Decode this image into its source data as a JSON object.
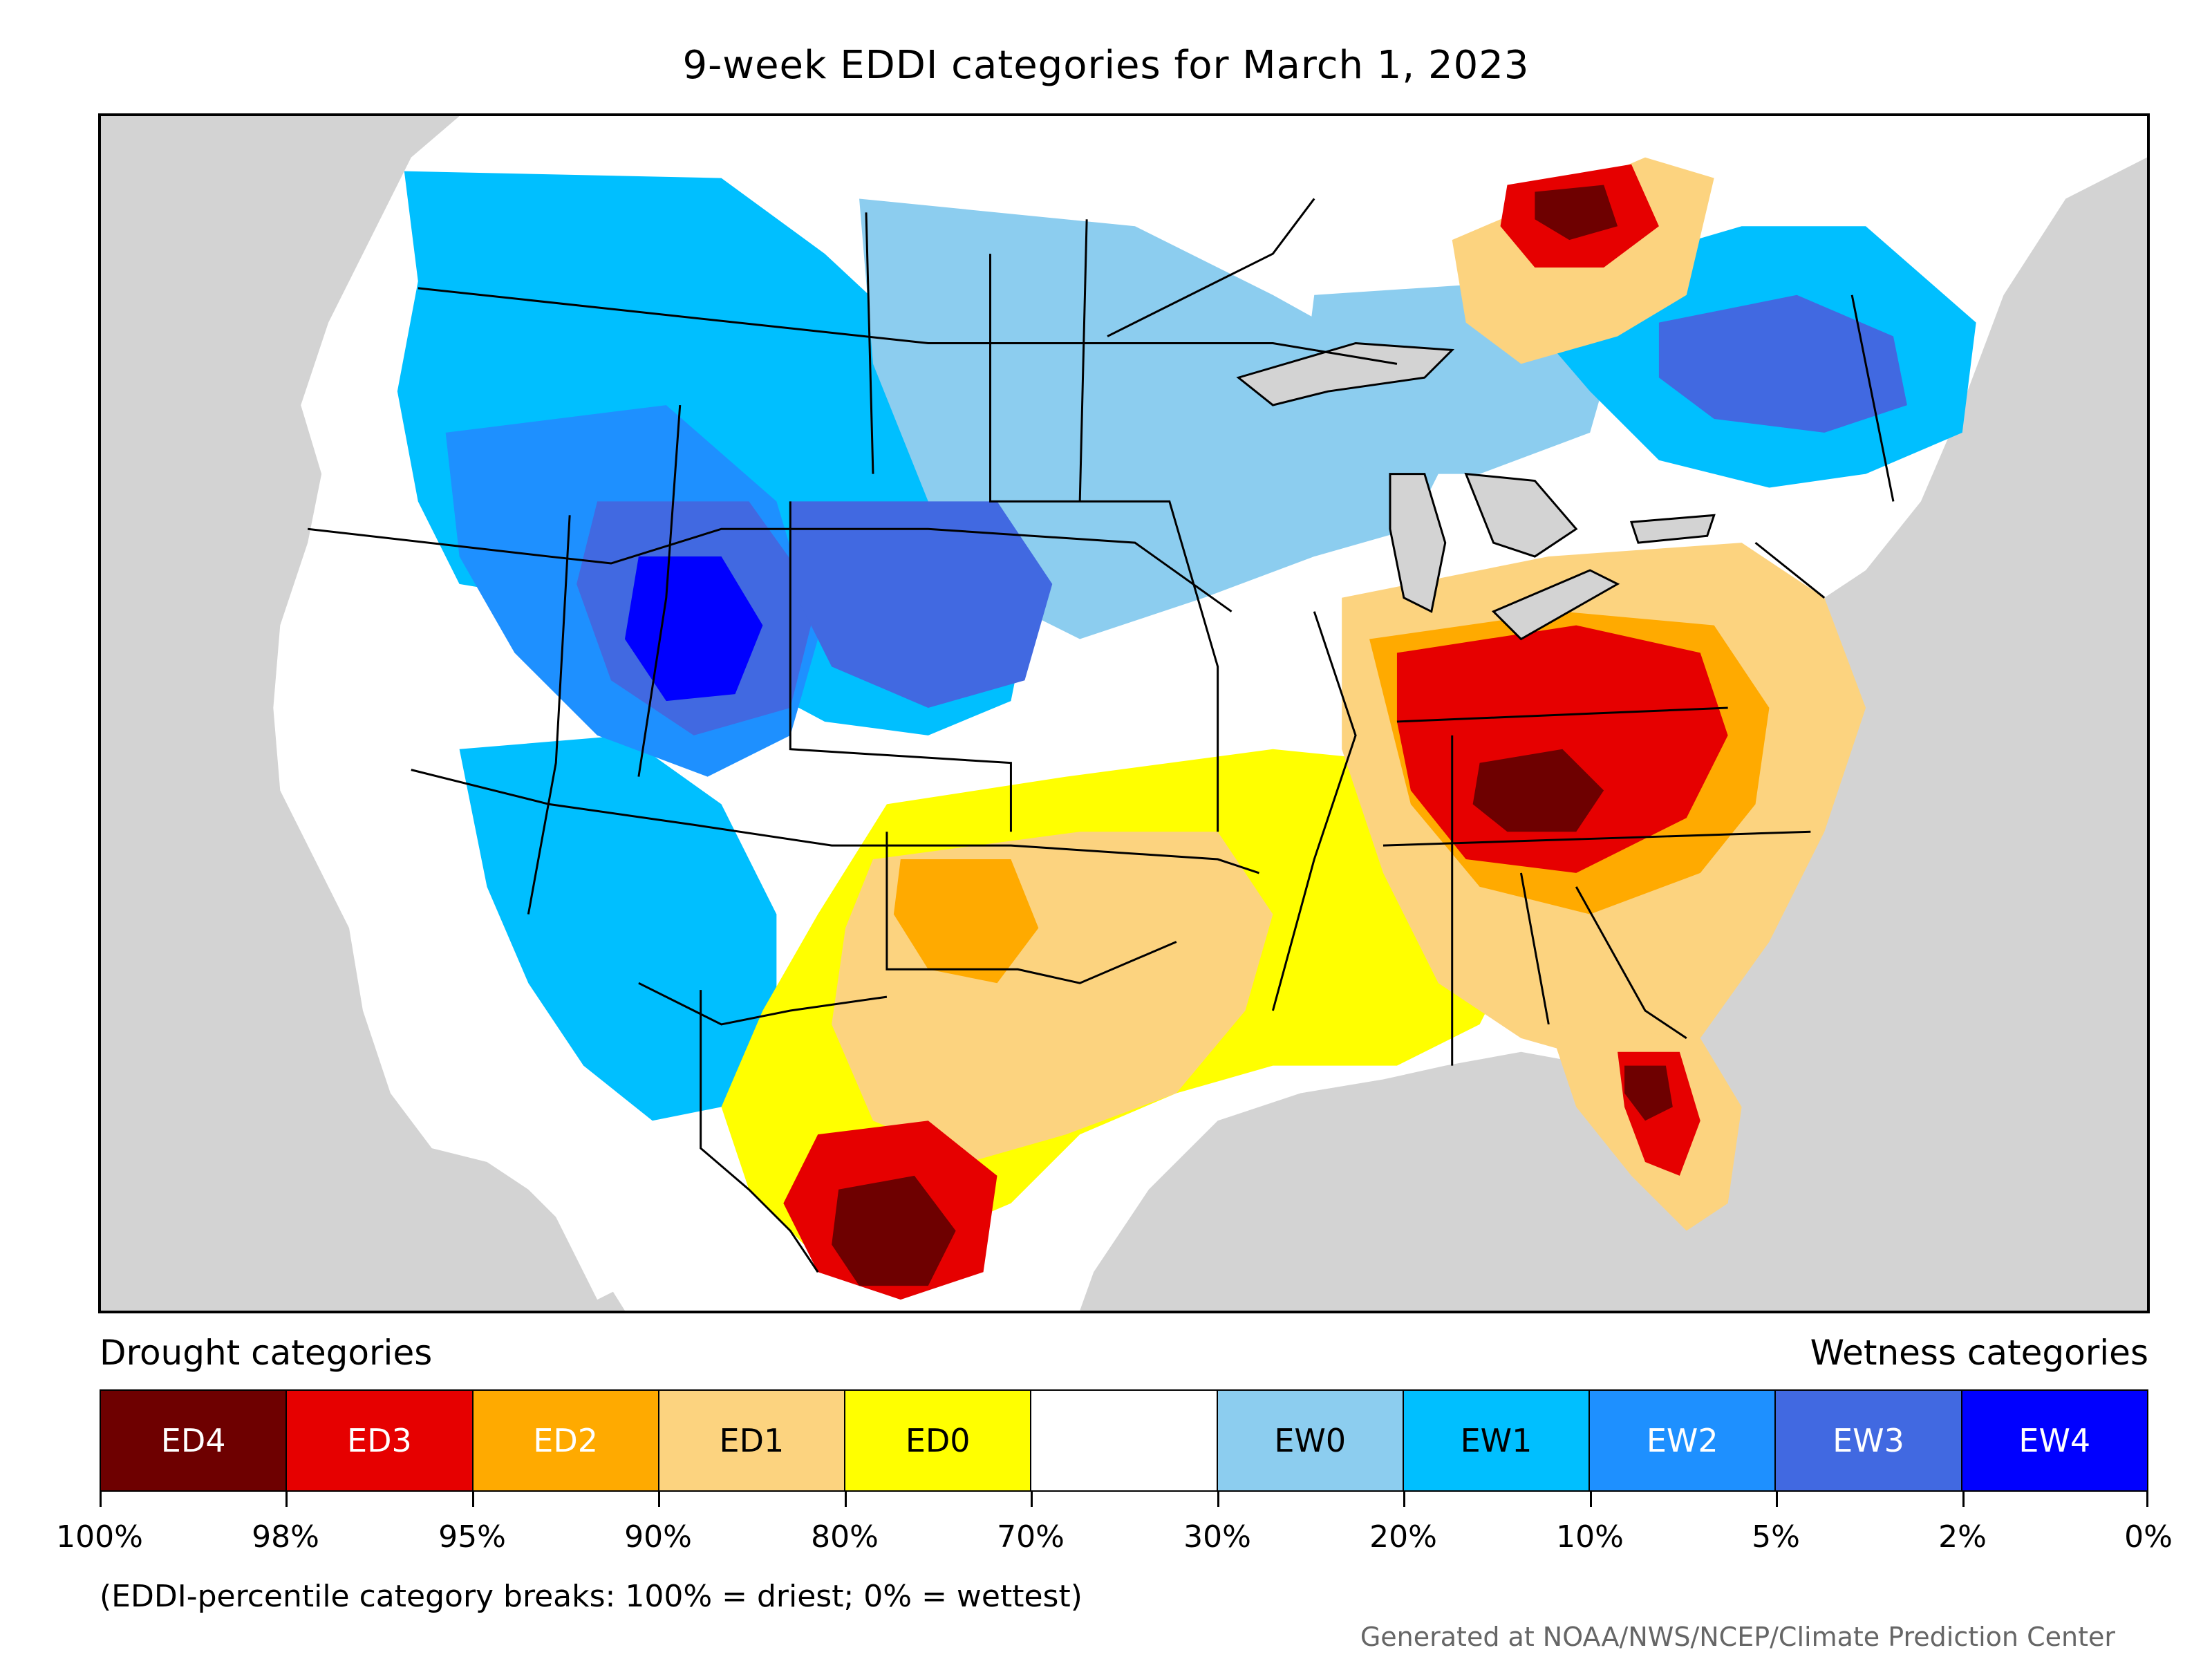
{
  "title": "9-week EDDI categories for March 1, 2023",
  "legend": {
    "left_heading": "Drought categories",
    "right_heading": "Wetness categories",
    "segments": [
      {
        "label": "ED4",
        "color": "#6e0000",
        "text_color": "#ffffff"
      },
      {
        "label": "ED3",
        "color": "#e60000",
        "text_color": "#ffffff"
      },
      {
        "label": "ED2",
        "color": "#ffaa00",
        "text_color": "#ffffff"
      },
      {
        "label": "ED1",
        "color": "#fcd37f",
        "text_color": "#000000"
      },
      {
        "label": "ED0",
        "color": "#ffff00",
        "text_color": "#000000"
      },
      {
        "label": "",
        "color": "#ffffff",
        "text_color": "#000000"
      },
      {
        "label": "EW0",
        "color": "#8ccdef",
        "text_color": "#000000"
      },
      {
        "label": "EW1",
        "color": "#00bfff",
        "text_color": "#000000"
      },
      {
        "label": "EW2",
        "color": "#1e90ff",
        "text_color": "#ffffff"
      },
      {
        "label": "EW3",
        "color": "#4169e1",
        "text_color": "#ffffff"
      },
      {
        "label": "EW4",
        "color": "#0000ff",
        "text_color": "#ffffff"
      }
    ],
    "tick_labels": [
      "100%",
      "98%",
      "95%",
      "90%",
      "80%",
      "70%",
      "30%",
      "20%",
      "10%",
      "5%",
      "2%",
      "0%"
    ]
  },
  "footnote": "(EDDI-percentile category breaks: 100% = driest; 0% = wettest)",
  "credit": "Generated at NOAA/NWS/NCEP/Climate Prediction Center",
  "map": {
    "background_color": "#d3d3d3",
    "land_color": "#ffffff",
    "border_color": "#000000"
  }
}
